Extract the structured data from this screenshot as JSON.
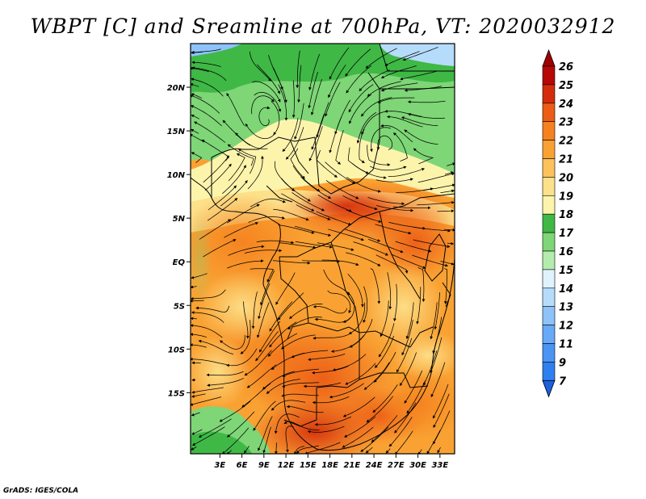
{
  "title": "WBPT [C] and Sreamline at 700hPa, VT: 2020032912",
  "footer": "GrADS: IGES/COLA",
  "map": {
    "lon_range": [
      -1,
      35
    ],
    "lat_range": [
      -22,
      25
    ],
    "lon_ticks": [
      "3E",
      "6E",
      "9E",
      "12E",
      "15E",
      "18E",
      "21E",
      "24E",
      "27E",
      "30E",
      "33E"
    ],
    "lat_ticks": [
      "20N",
      "15N",
      "10N",
      "5N",
      "EQ",
      "5S",
      "10S",
      "15S"
    ],
    "field": "WBPT",
    "overlay": "streamlines"
  },
  "colorbar": {
    "labels": [
      "7",
      "9",
      "11",
      "12",
      "13",
      "14",
      "15",
      "16",
      "17",
      "18",
      "19",
      "20",
      "21",
      "22",
      "23",
      "24",
      "25",
      "26"
    ],
    "colors": [
      "#1c60e0",
      "#2f7ff0",
      "#4a94f4",
      "#68aaf7",
      "#8ec3f9",
      "#b6dcfb",
      "#dff3fd",
      "#b4ecae",
      "#7ed676",
      "#3fb846",
      "#fdf4ac",
      "#fde08a",
      "#fdc25c",
      "#f9a233",
      "#f5821f",
      "#ec5c15",
      "#d42c0a",
      "#b80806",
      "#a00000"
    ]
  }
}
